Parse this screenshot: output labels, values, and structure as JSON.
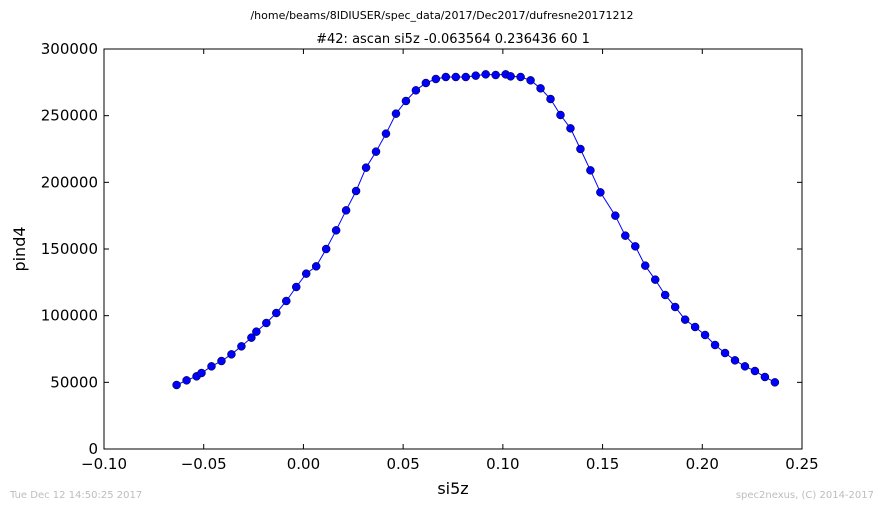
{
  "figure": {
    "suptitle": "/home/beams/8IDIUSER/spec_data/2017/Dec2017/dufresne20171212",
    "footer_left": "Tue Dec 12 14:50:25 2017",
    "footer_right": "spec2nexus, (C) 2014-2017"
  },
  "chart_data": {
    "type": "line",
    "title": "#42: ascan  si5z -0.063564 0.236436  60 1",
    "xlabel": "si5z",
    "ylabel": "pind4",
    "xlim": [
      -0.1,
      0.25
    ],
    "ylim": [
      0,
      300000
    ],
    "xticks": [
      -0.1,
      -0.05,
      0.0,
      0.05,
      0.1,
      0.15,
      0.2,
      0.25
    ],
    "xtick_labels": [
      "−0.10",
      "−0.05",
      "0.00",
      "0.05",
      "0.10",
      "0.15",
      "0.20",
      "0.25"
    ],
    "yticks": [
      0,
      50000,
      100000,
      150000,
      200000,
      250000,
      300000
    ],
    "ytick_labels": [
      "0",
      "50000",
      "100000",
      "150000",
      "200000",
      "250000",
      "300000"
    ],
    "grid": false,
    "legend": "none",
    "line_color": "#0000ff",
    "marker": "circle",
    "marker_color": "#0000ff",
    "series": [
      {
        "x": [
          -0.0636,
          -0.0586,
          -0.0536,
          -0.0511,
          -0.0461,
          -0.0411,
          -0.0361,
          -0.0311,
          -0.0261,
          -0.0236,
          -0.0186,
          -0.0136,
          -0.0086,
          -0.0036,
          0.0014,
          0.0064,
          0.0114,
          0.0164,
          0.0214,
          0.0264,
          0.0314,
          0.0364,
          0.0414,
          0.0464,
          0.0514,
          0.0564,
          0.0614,
          0.0664,
          0.0714,
          0.0764,
          0.0814,
          0.0864,
          0.0914,
          0.0964,
          0.1014,
          0.1039,
          0.1089,
          0.1139,
          0.1189,
          0.1239,
          0.1289,
          0.1339,
          0.1389,
          0.1439,
          0.1489,
          0.1564,
          0.1614,
          0.1664,
          0.1714,
          0.1764,
          0.1814,
          0.1864,
          0.1914,
          0.1964,
          0.2014,
          0.2064,
          0.2114,
          0.2164,
          0.2214,
          0.2264,
          0.2314,
          0.2364
        ],
        "y": [
          48000,
          51500,
          54500,
          57000,
          62000,
          66000,
          71000,
          77000,
          83500,
          88000,
          94500,
          102000,
          111000,
          121500,
          131500,
          137000,
          150000,
          164000,
          179000,
          193500,
          211000,
          223000,
          236500,
          251500,
          261000,
          269000,
          274500,
          277500,
          279000,
          279000,
          279000,
          280000,
          281000,
          280500,
          281000,
          279500,
          279000,
          276500,
          270500,
          262500,
          250500,
          240500,
          225000,
          209000,
          192500,
          175000,
          160000,
          152000,
          137500,
          127000,
          115500,
          106500,
          97000,
          91500,
          85500,
          78000,
          72000,
          66500,
          62000,
          58500,
          54000,
          50000
        ]
      }
    ]
  }
}
